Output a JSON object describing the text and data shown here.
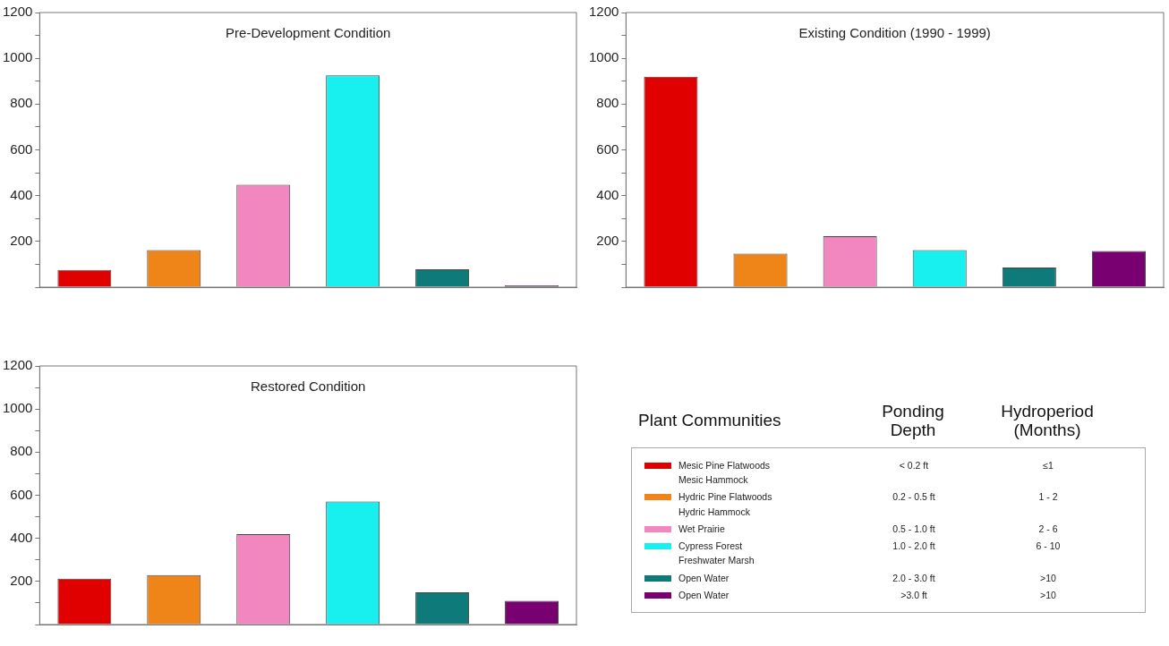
{
  "chart_data": [
    {
      "type": "bar",
      "title": "Pre-Development Condition",
      "categories": [
        null,
        null,
        null,
        null,
        null,
        null
      ],
      "values": [
        75,
        162,
        448,
        925,
        78,
        8
      ],
      "colors": [
        "#e00000",
        "#ef8518",
        "#f286be",
        "#18f0f0",
        "#0e7a7a",
        "#780070"
      ],
      "ylim": [
        0,
        1200
      ],
      "yticks": [
        {
          "value": 0,
          "label": null
        },
        {
          "value": 100,
          "label": null
        },
        200,
        {
          "value": 300,
          "label": null
        },
        400,
        {
          "value": 500,
          "label": null
        },
        600,
        {
          "value": 700,
          "label": null
        },
        800,
        {
          "value": 900,
          "label": null
        },
        1000,
        {
          "value": 1100,
          "label": null
        },
        1200
      ]
    },
    {
      "type": "bar",
      "title": "Existing Condition (1990 - 1999)",
      "categories": [
        null,
        null,
        null,
        null,
        null,
        null
      ],
      "values": [
        920,
        147,
        223,
        162,
        86,
        158
      ],
      "colors": [
        "#e00000",
        "#ef8518",
        "#f286be",
        "#18f0f0",
        "#0e7a7a",
        "#780070"
      ],
      "ylim": [
        0,
        1200
      ],
      "yticks": [
        {
          "value": 0,
          "label": null
        },
        {
          "value": 100,
          "label": null
        },
        200,
        {
          "value": 300,
          "label": null
        },
        400,
        {
          "value": 500,
          "label": null
        },
        600,
        {
          "value": 700,
          "label": null
        },
        800,
        {
          "value": 900,
          "label": null
        },
        1000,
        {
          "value": 1100,
          "label": null
        },
        1200
      ]
    },
    {
      "type": "bar",
      "title": "Restored Condition",
      "categories": [
        null,
        null,
        null,
        null,
        null,
        null
      ],
      "values": [
        213,
        229,
        419,
        571,
        149,
        110
      ],
      "colors": [
        "#e00000",
        "#ef8518",
        "#f286be",
        "#18f0f0",
        "#0e7a7a",
        "#780070"
      ],
      "ylim": [
        0,
        1200
      ],
      "yticks": [
        {
          "value": 0,
          "label": null
        },
        {
          "value": 100,
          "label": null
        },
        200,
        {
          "value": 300,
          "label": null
        },
        400,
        {
          "value": 500,
          "label": null
        },
        600,
        {
          "value": 700,
          "label": null
        },
        800,
        {
          "value": 900,
          "label": null
        },
        1000,
        {
          "value": 1100,
          "label": null
        },
        1200
      ]
    },
    {
      "type": "other",
      "colors": [
        "#e00000",
        "#ef8518",
        "#f286be",
        "#18f0f0",
        "#0e7a7a",
        "#780070"
      ],
      "annotations": [
        "Plant Communities",
        "Ponding\nDepth",
        "Hydroperiod\n(Months)",
        "Mesic Pine Flatwoods\nMesic Hammock",
        "< 0.2 ft",
        "≤1",
        "Hydric Pine Flatwoods\nHydric Hammock",
        "0.2 - 0.5 ft",
        "1 - 2",
        "Wet Prairie",
        "0.5 - 1.0 ft",
        "2 - 6",
        "Cypress Forest\nFreshwater Marsh",
        "1.0 - 2.0 ft",
        "6 - 10",
        "Open Water",
        "2.0 - 3.0 ft",
        ">10",
        "Open Water",
        ">3.0 ft",
        ">10"
      ]
    }
  ]
}
